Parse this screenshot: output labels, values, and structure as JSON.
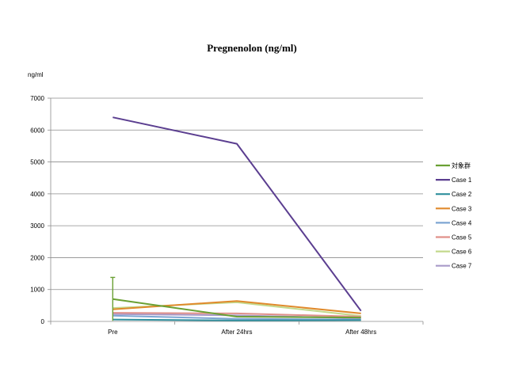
{
  "chart_data": {
    "type": "line",
    "title": "Pregnenolon (ng/ml)",
    "unit_label": "ng/ml",
    "xlabel": "",
    "ylabel": "",
    "categories": [
      "Pre",
      "After 24hrs",
      "After 48hrs"
    ],
    "ylim": [
      0,
      7000
    ],
    "yticks": [
      0,
      1000,
      2000,
      3000,
      4000,
      5000,
      6000,
      7000
    ],
    "grid": true,
    "legend_position": "right",
    "series": [
      {
        "name": "対象群",
        "color": "#6aa033",
        "values": [
          700,
          150,
          120
        ],
        "error_bar": {
          "index": 0,
          "upper": 1380,
          "lower": 20
        }
      },
      {
        "name": "Case 1",
        "color": "#5b3e90",
        "values": [
          6400,
          5570,
          330
        ]
      },
      {
        "name": "Case 2",
        "color": "#2f8f9d",
        "values": [
          60,
          30,
          40
        ]
      },
      {
        "name": "Case 3",
        "color": "#e08a2c",
        "values": [
          380,
          640,
          250
        ]
      },
      {
        "name": "Case 4",
        "color": "#7ea6d3",
        "values": [
          180,
          80,
          60
        ]
      },
      {
        "name": "Case 5",
        "color": "#e0908a",
        "values": [
          270,
          250,
          150
        ]
      },
      {
        "name": "Case 6",
        "color": "#c3d98c",
        "values": [
          420,
          600,
          170
        ]
      },
      {
        "name": "Case 7",
        "color": "#a99ac8",
        "values": [
          230,
          190,
          100
        ]
      }
    ]
  }
}
